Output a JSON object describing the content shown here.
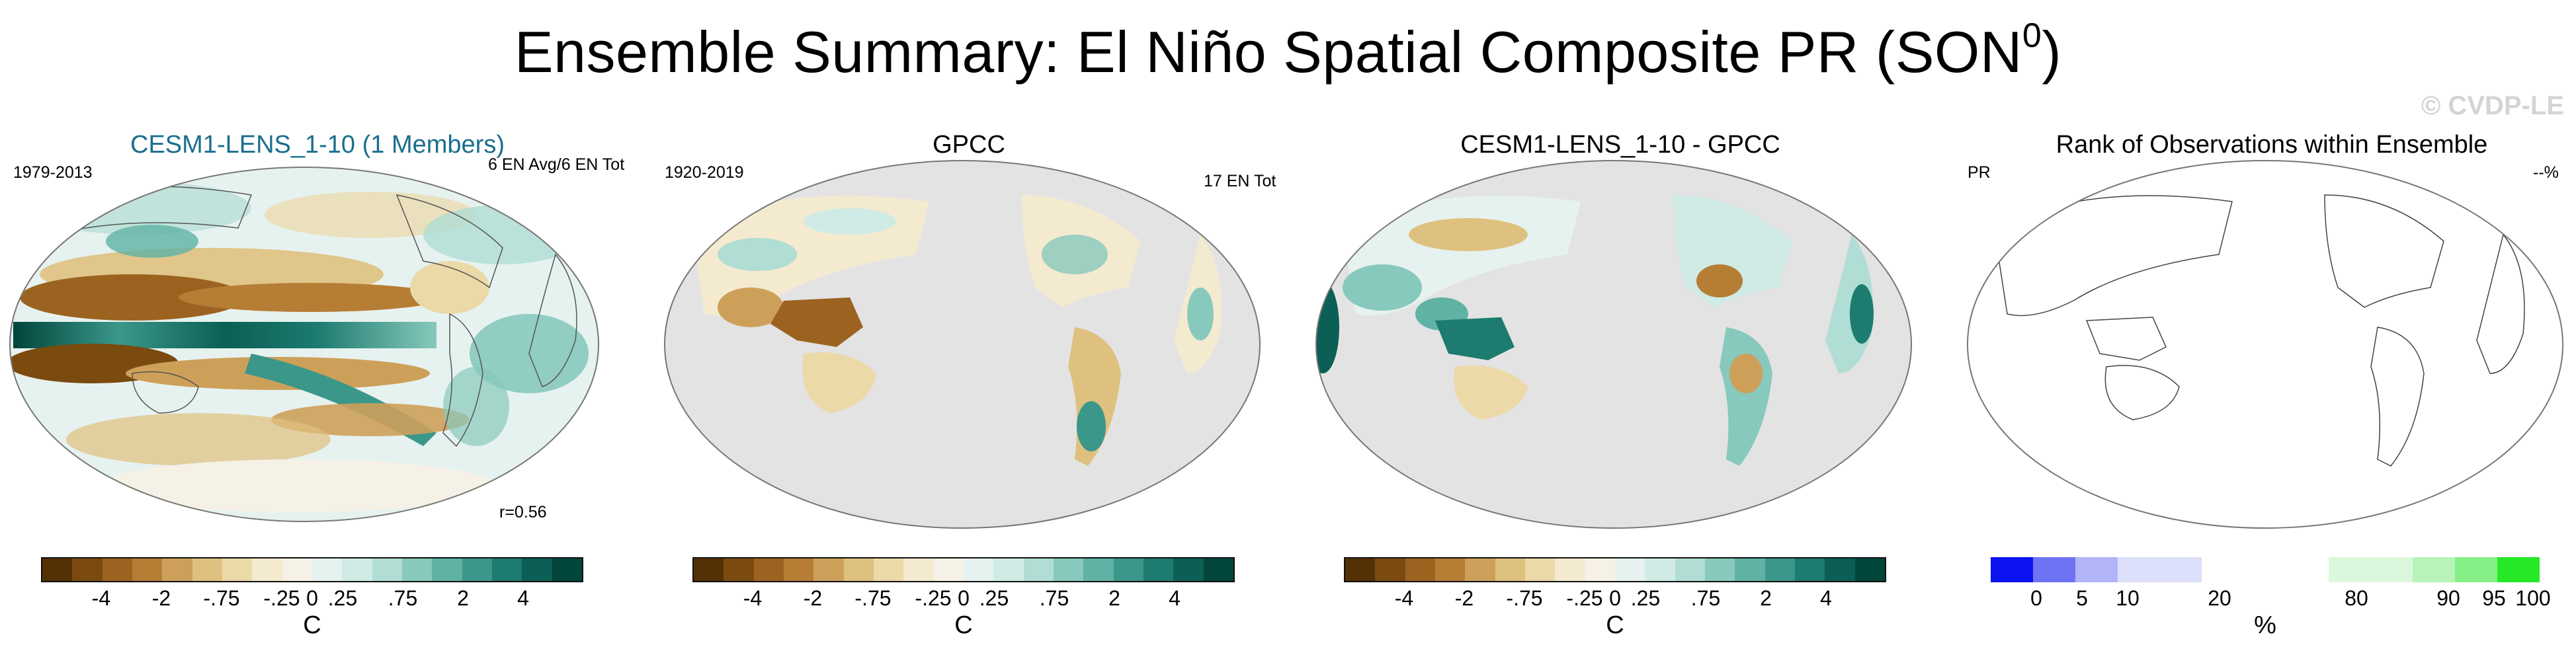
{
  "title_main": "Ensemble Summary: El Niño Spatial Composite PR (SON",
  "title_sup": "0",
  "title_close": ")",
  "watermark": "© CVDP-LE",
  "panels": [
    {
      "title": "CESM1-LENS_1-10 (1 Members)",
      "title_color": "#1a6e8e",
      "left_text": "1979-2013",
      "right_text": "6 EN Avg/6 EN Tot",
      "corner_text": "r=0.56",
      "unit": "C",
      "ticks": [
        "-4",
        "-2",
        "-.75",
        "-.25",
        "0",
        ".25",
        ".75",
        "2",
        "4"
      ]
    },
    {
      "title": "GPCC",
      "title_color": "#000000",
      "left_text": "1920-2019",
      "right_text": "17 EN Tot",
      "corner_text": "",
      "unit": "C",
      "ticks": [
        "-4",
        "-2",
        "-.75",
        "-.25",
        "0",
        ".25",
        ".75",
        "2",
        "4"
      ]
    },
    {
      "title": "CESM1-LENS_1-10 - GPCC",
      "title_color": "#000000",
      "left_text": "",
      "right_text": "",
      "corner_text": "",
      "unit": "C",
      "ticks": [
        "-4",
        "-2",
        "-.75",
        "-.25",
        "0",
        ".25",
        ".75",
        "2",
        "4"
      ]
    },
    {
      "title": "Rank of Observations within Ensemble",
      "title_color": "#000000",
      "left_text": "PR",
      "right_text": "--%",
      "corner_text": "",
      "unit": "%",
      "ticks": [
        "0",
        "5",
        "10",
        "20",
        "80",
        "90",
        "95",
        "100"
      ]
    }
  ],
  "colors": {
    "brown_teal_scale": [
      "#543005",
      "#7a4a0f",
      "#9c6320",
      "#b67d35",
      "#cda05a",
      "#dfc17f",
      "#ecd9a8",
      "#f4ead0",
      "#f6f1e6",
      "#e6f2ef",
      "#d0ebe5",
      "#b0ddd4",
      "#87c9bc",
      "#5fb2a4",
      "#3b978a",
      "#1d7b6f",
      "#0b5f54",
      "#01453b"
    ],
    "rank_scale": [
      "#0b14f0",
      "#6e73f3",
      "#b1b4f6",
      "#dcdff9",
      "#ffffff",
      "#ffffff",
      "#dcf8dc",
      "#b8f4b8",
      "#86f086",
      "#27e827"
    ],
    "land_mask": "#e3e3e3",
    "ocean_blank": "#ffffff"
  }
}
